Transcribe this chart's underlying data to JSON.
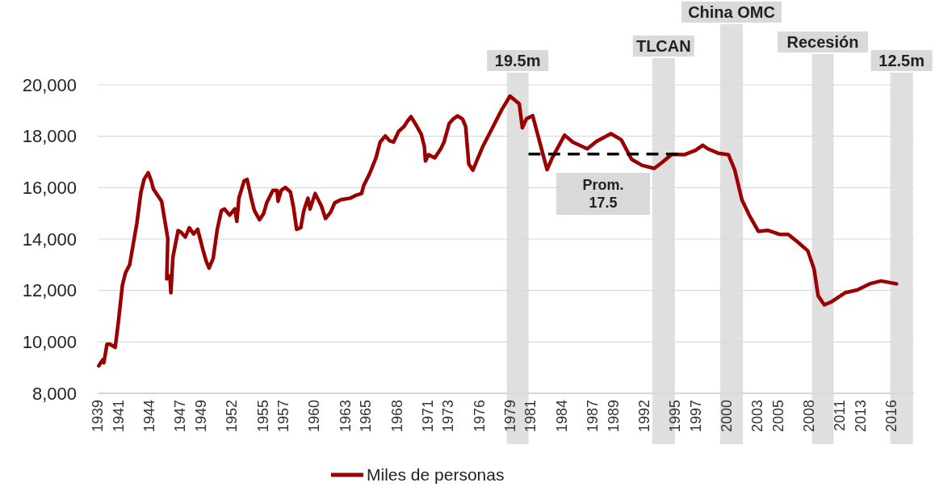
{
  "chart_data": {
    "type": "line",
    "x": [
      1939.1,
      1939.5,
      1939.6,
      1939.9,
      1940.2,
      1940.7,
      1941.0,
      1941.4,
      1941.7,
      1942.1,
      1942.8,
      1943.2,
      1943.5,
      1943.9,
      1944.2,
      1944.4,
      1944.9,
      1945.2,
      1945.5,
      1945.8,
      1945.7,
      1946.0,
      1946.1,
      1946.3,
      1946.8,
      1947.1,
      1947.5,
      1947.9,
      1948.3,
      1948.7,
      1949.2,
      1949.5,
      1949.8,
      1950.2,
      1950.6,
      1951.0,
      1951.3,
      1951.8,
      1952.3,
      1952.5,
      1952.7,
      1953.2,
      1953.5,
      1953.9,
      1954.2,
      1954.7,
      1955.1,
      1955.4,
      1956.0,
      1956.4,
      1956.5,
      1956.8,
      1957.2,
      1957.7,
      1958.0,
      1958.3,
      1958.7,
      1959.0,
      1959.4,
      1959.6,
      1960.1,
      1960.7,
      1961.1,
      1961.6,
      1962.0,
      1962.6,
      1963.5,
      1964.1,
      1964.6,
      1964.8,
      1965.4,
      1966.0,
      1966.4,
      1966.9,
      1967.3,
      1967.7,
      1968.2,
      1968.7,
      1969.1,
      1969.4,
      1969.9,
      1970.4,
      1970.7,
      1970.8,
      1971.1,
      1971.7,
      1972.3,
      1972.6,
      1973.1,
      1973.5,
      1973.9,
      1974.4,
      1974.7,
      1975.0,
      1975.4,
      1975.9,
      1976.4,
      1977.3,
      1978.2,
      1979.0,
      1979.9,
      1980.2,
      1980.6,
      1981.2,
      1981.9,
      1982.6,
      1983.1,
      1984.3,
      1985.1,
      1986.5,
      1987.4,
      1988.8,
      1989.8,
      1990.8,
      1991.8,
      1993.0,
      1993.8,
      1994.7,
      1995.9,
      1997.0,
      1997.7,
      1998.2,
      1999.2,
      2000.2,
      2000.8,
      2001.5,
      2002.2,
      2003.1,
      2004.0,
      2005.2,
      2006.0,
      2006.9,
      2007.9,
      2008.5,
      2008.9,
      2009.5,
      2010.2,
      2011.5,
      2012.7,
      2013.9,
      2015.0,
      2016.5
    ],
    "series": [
      {
        "name": "Miles de personas",
        "color": "#9b0000",
        "values": [
          9070,
          9310,
          9190,
          9910,
          9910,
          9790,
          10760,
          12210,
          12690,
          13000,
          14620,
          15830,
          16320,
          16580,
          16260,
          15950,
          15650,
          15470,
          14750,
          14020,
          12450,
          12570,
          11910,
          13300,
          14330,
          14260,
          14080,
          14440,
          14200,
          14380,
          13600,
          13170,
          12870,
          13240,
          14380,
          15110,
          15170,
          14930,
          15170,
          14690,
          15590,
          16260,
          16320,
          15590,
          15110,
          14750,
          14990,
          15410,
          15890,
          15890,
          15470,
          15890,
          16010,
          15830,
          15230,
          14380,
          14440,
          15110,
          15590,
          15170,
          15770,
          15290,
          14800,
          15050,
          15410,
          15530,
          15590,
          15710,
          15770,
          16070,
          16560,
          17160,
          17770,
          18010,
          17830,
          17770,
          18190,
          18370,
          18610,
          18760,
          18430,
          18070,
          17580,
          17040,
          17280,
          17160,
          17520,
          17770,
          18490,
          18670,
          18790,
          18670,
          18370,
          16920,
          16680,
          17160,
          17630,
          18330,
          19030,
          19560,
          19260,
          18330,
          18680,
          18800,
          17750,
          16700,
          17160,
          18040,
          17770,
          17510,
          17800,
          18100,
          17860,
          17100,
          16870,
          16750,
          16990,
          17300,
          17280,
          17450,
          17650,
          17510,
          17340,
          17280,
          16700,
          15530,
          14940,
          14300,
          14340,
          14180,
          14180,
          13890,
          13540,
          12840,
          11790,
          11440,
          11560,
          11910,
          12020,
          12260,
          12370,
          12260
        ]
      },
      {
        "type": "line",
        "x": [
          1980.8,
          1995.3
        ],
        "values": [
          17310,
          17310
        ],
        "color": "#000000",
        "line_style": "dashed"
      }
    ],
    "xlim": [
      1939,
      2018.2
    ],
    "xticks": [
      1939,
      1941,
      1944,
      1947,
      1949,
      1952,
      1955,
      1957,
      1960,
      1963,
      1965,
      1968,
      1971,
      1973,
      1976,
      1979,
      1981,
      1984,
      1987,
      1989,
      1992,
      1995,
      1997,
      2000,
      2003,
      2005,
      2008,
      2011,
      2013,
      2016
    ],
    "ylim": [
      8000,
      20000
    ],
    "yticks": [
      {
        "value": 8000,
        "label": "8,000"
      },
      {
        "value": 10000,
        "label": "10,000"
      },
      {
        "value": 12000,
        "label": "12,000"
      },
      {
        "value": 14000,
        "label": "14,000"
      },
      {
        "value": 16000,
        "label": "16,000"
      },
      {
        "value": 18000,
        "label": "18,000"
      },
      {
        "value": 20000,
        "label": "20,000"
      }
    ],
    "bands": [
      {
        "axis": "x",
        "from": 1978.7,
        "to": 1980.8,
        "label": "19.5m",
        "color": "#d9d9d9"
      },
      {
        "axis": "x",
        "from": 1992.8,
        "to": 1995.0,
        "label": "TLCAN",
        "color": "#d9d9d9"
      },
      {
        "axis": "x",
        "from": 1999.4,
        "to": 2001.6,
        "label": "China OMC",
        "color": "#d9d9d9"
      },
      {
        "axis": "x",
        "from": 2008.3,
        "to": 2010.4,
        "label": "Recesión",
        "color": "#d9d9d9"
      },
      {
        "axis": "x",
        "from": 2015.9,
        "to": 2018.1,
        "label": "12.5m",
        "color": "#d9d9d9"
      }
    ],
    "annotations": [
      "Prom.\n17.5"
    ],
    "grid": "y",
    "legend": "bottom"
  }
}
